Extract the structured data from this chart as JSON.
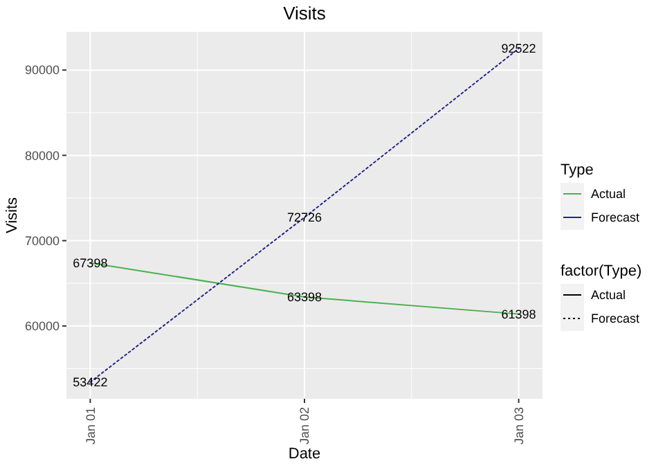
{
  "chart_data": {
    "type": "line",
    "title": "Visits",
    "xlabel": "Date",
    "ylabel": "Visits",
    "legend_title": "Type",
    "categories": [
      "Jan 01",
      "Jan 02",
      "Jan 03"
    ],
    "series": [
      {
        "name": "Actual",
        "color": "#4caf50",
        "values": [
          67398,
          63398,
          61398
        ],
        "line_style": "solid"
      },
      {
        "name": "Forecast",
        "color": "#25258a",
        "values": [
          53422,
          72726,
          92522
        ],
        "line_style": "dotted"
      }
    ],
    "ylim": [
      51467,
      94477
    ],
    "yticks": [
      60000,
      70000,
      80000,
      90000
    ],
    "grid": true,
    "data_labels": true,
    "legend": "right",
    "annotations": [
      "factor(Type)"
    ]
  }
}
